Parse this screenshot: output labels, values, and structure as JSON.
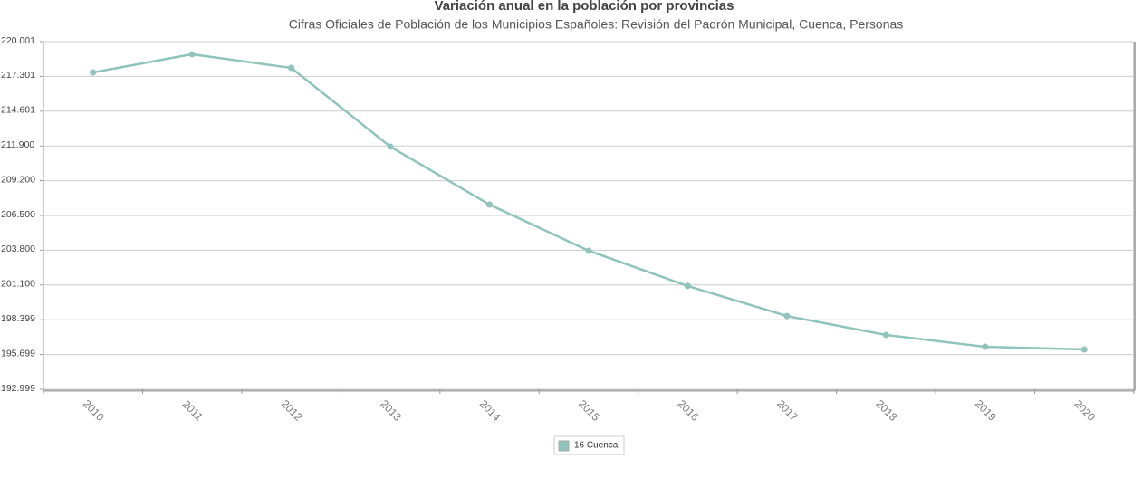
{
  "chart_data": {
    "type": "line",
    "title": "Variación anual en la población por provincias",
    "subtitle": "Cifras Oficiales de Población de los Municipios Españoles: Revisión del Padrón Municipal, Cuenca, Personas",
    "categories": [
      "2010",
      "2011",
      "2012",
      "2013",
      "2014",
      "2015",
      "2016",
      "2017",
      "2018",
      "2019",
      "2020"
    ],
    "series": [
      {
        "name": "16 Cuenca",
        "color": "#8fc3bc",
        "values": [
          217610,
          219020,
          217960,
          211840,
          207340,
          203760,
          201020,
          198690,
          197220,
          196300,
          196090
        ]
      }
    ],
    "ylim": [
      192999,
      220001
    ],
    "yticks": [
      {
        "value": 220001,
        "label": "220.001"
      },
      {
        "value": 217301,
        "label": "217.301"
      },
      {
        "value": 214601,
        "label": "214.601"
      },
      {
        "value": 211900,
        "label": "211.900"
      },
      {
        "value": 209200,
        "label": "209.200"
      },
      {
        "value": 206500,
        "label": "206.500"
      },
      {
        "value": 203800,
        "label": "203.800"
      },
      {
        "value": 201100,
        "label": "201.100"
      },
      {
        "value": 198399,
        "label": "198.399"
      },
      {
        "value": 195699,
        "label": "195.699"
      },
      {
        "value": 192999,
        "label": "192.999"
      }
    ],
    "grid": true,
    "legend": "bottom"
  }
}
